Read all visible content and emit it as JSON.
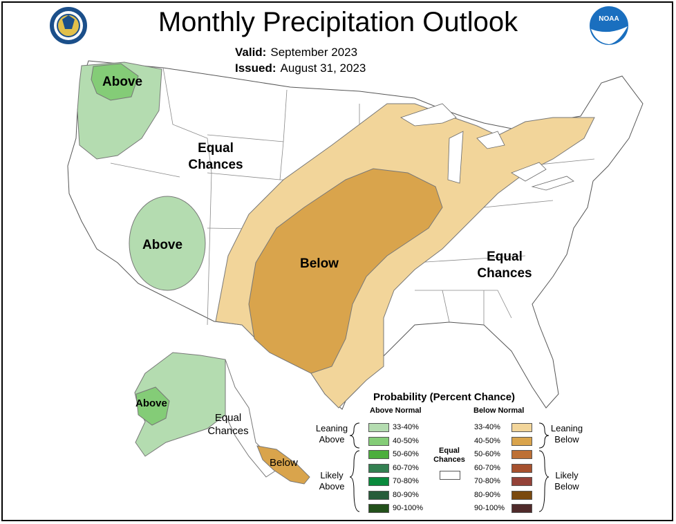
{
  "title": "Monthly Precipitation Outlook",
  "valid": {
    "label": "Valid:",
    "value": "September 2023"
  },
  "issued": {
    "label": "Issued:",
    "value": "August 31, 2023"
  },
  "logos": {
    "left": "department-of-commerce-seal",
    "right": "noaa-logo"
  },
  "logo_text": {
    "noaa": "NOAA"
  },
  "colors": {
    "above_33_40": "#b4dcb0",
    "above_40_50": "#84cc77",
    "above_50_60": "#4cae3d",
    "above_60_70": "#338051",
    "above_70_80": "#098a3c",
    "above_80_90": "#275c3a",
    "above_90_100": "#22501a",
    "below_33_40": "#f2d59a",
    "below_40_50": "#d9a44c",
    "below_50_60": "#bd7035",
    "below_60_70": "#a6512e",
    "below_70_80": "#944238",
    "below_80_90": "#7a4a10",
    "below_90_100": "#4f2a2a",
    "equal": "#ffffff"
  },
  "map_labels": {
    "nw_above": "Above",
    "west_above": "Above",
    "west_equal_1": "Equal",
    "west_equal_2": "Chances",
    "central_below": "Below",
    "east_equal_1": "Equal",
    "east_equal_2": "Chances",
    "ak_above": "Above",
    "ak_equal_1": "Equal",
    "ak_equal_2": "Chances",
    "ak_below": "Below"
  },
  "legend": {
    "title": "Probability (Percent Chance)",
    "above_header": "Above Normal",
    "below_header": "Below Normal",
    "leaning_above": [
      "Leaning",
      "Above"
    ],
    "likely_above": [
      "Likely",
      "Above"
    ],
    "leaning_below": [
      "Leaning",
      "Below"
    ],
    "likely_below": [
      "Likely",
      "Below"
    ],
    "equal": [
      "Equal",
      "Chances"
    ],
    "ranges": [
      "33-40%",
      "40-50%",
      "50-60%",
      "60-70%",
      "70-80%",
      "80-90%",
      "90-100%"
    ]
  }
}
